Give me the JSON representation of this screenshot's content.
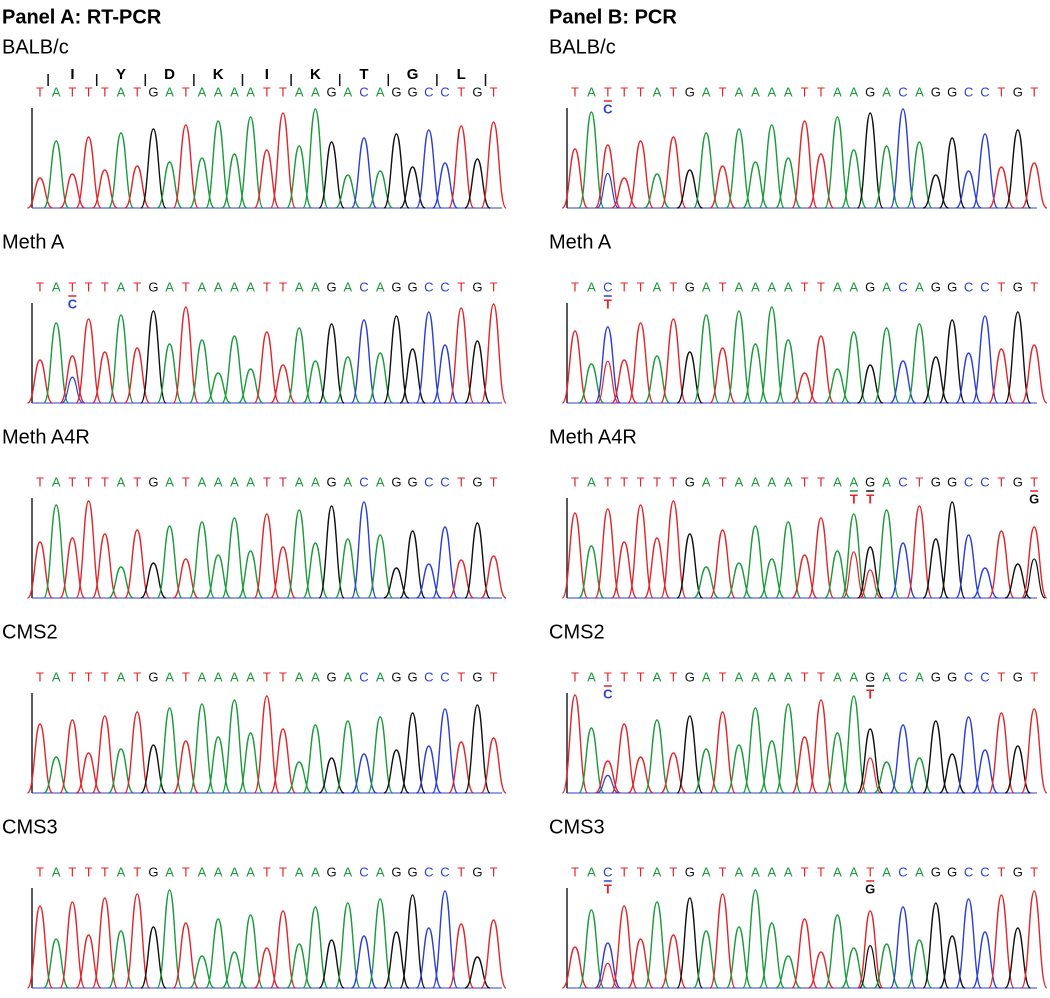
{
  "panels": [
    {
      "title": "Panel A: RT-PCR",
      "traces": [
        {
          "label": "BALB/c",
          "amino_acids": [
            null,
            null,
            "I",
            null,
            null,
            "Y",
            null,
            null,
            "D",
            null,
            null,
            "K",
            null,
            null,
            "I",
            null,
            null,
            "K",
            null,
            null,
            "T",
            null,
            null,
            "G",
            null,
            null,
            "L",
            null,
            null
          ],
          "sequence": [
            "T",
            "A",
            "T",
            "T",
            "T",
            "A",
            "T",
            "G",
            "A",
            "T",
            "A",
            "A",
            "A",
            "A",
            "T",
            "T",
            "A",
            "A",
            "G",
            "A",
            "C",
            "A",
            "G",
            "G",
            "C",
            "C",
            "T",
            "G",
            "T"
          ]
        },
        {
          "label": "Meth A",
          "sequence": [
            "T",
            "A",
            "T",
            "T",
            "T",
            "A",
            "T",
            "G",
            "A",
            "T",
            "A",
            "A",
            "A",
            "A",
            "T",
            "T",
            "A",
            "A",
            "G",
            "A",
            "C",
            "A",
            "G",
            "G",
            "C",
            "C",
            "T",
            "G",
            "T"
          ],
          "lower": [
            null,
            null,
            "C",
            null,
            null,
            null,
            null,
            null,
            null,
            null,
            null,
            null,
            null,
            null,
            null,
            null,
            null,
            null,
            null,
            null,
            null,
            null,
            null,
            null,
            null,
            null,
            null,
            null,
            null
          ]
        },
        {
          "label": "Meth A4R",
          "sequence": [
            "T",
            "A",
            "T",
            "T",
            "T",
            "A",
            "T",
            "G",
            "A",
            "T",
            "A",
            "A",
            "A",
            "A",
            "T",
            "T",
            "A",
            "A",
            "G",
            "A",
            "C",
            "A",
            "G",
            "G",
            "C",
            "C",
            "T",
            "G",
            "T"
          ]
        },
        {
          "label": "CMS2",
          "sequence": [
            "T",
            "A",
            "T",
            "T",
            "T",
            "A",
            "T",
            "G",
            "A",
            "T",
            "A",
            "A",
            "A",
            "A",
            "T",
            "T",
            "A",
            "A",
            "G",
            "A",
            "C",
            "A",
            "G",
            "G",
            "C",
            "C",
            "T",
            "G",
            "T"
          ]
        },
        {
          "label": "CMS3",
          "sequence": [
            "T",
            "A",
            "T",
            "T",
            "T",
            "A",
            "T",
            "G",
            "A",
            "T",
            "A",
            "A",
            "A",
            "A",
            "T",
            "T",
            "A",
            "A",
            "G",
            "A",
            "C",
            "A",
            "G",
            "G",
            "C",
            "C",
            "T",
            "G",
            "T"
          ]
        }
      ]
    },
    {
      "title": "Panel B: PCR",
      "traces": [
        {
          "label": "BALB/c",
          "sequence": [
            "T",
            "A",
            "T",
            "T",
            "T",
            "A",
            "T",
            "G",
            "A",
            "T",
            "A",
            "A",
            "A",
            "A",
            "T",
            "T",
            "A",
            "A",
            "G",
            "A",
            "C",
            "A",
            "G",
            "G",
            "C",
            "C",
            "T",
            "G",
            "T"
          ],
          "lower": [
            null,
            null,
            "C",
            null,
            null,
            null,
            null,
            null,
            null,
            null,
            null,
            null,
            null,
            null,
            null,
            null,
            null,
            null,
            null,
            null,
            null,
            null,
            null,
            null,
            null,
            null,
            null,
            null,
            null
          ]
        },
        {
          "label": "Meth A",
          "sequence": [
            "T",
            "A",
            "C",
            "T",
            "T",
            "A",
            "T",
            "G",
            "A",
            "T",
            "A",
            "A",
            "A",
            "A",
            "T",
            "T",
            "A",
            "A",
            "G",
            "A",
            "C",
            "A",
            "G",
            "G",
            "C",
            "C",
            "T",
            "G",
            "T"
          ],
          "lower": [
            null,
            null,
            "T",
            null,
            null,
            null,
            null,
            null,
            null,
            null,
            null,
            null,
            null,
            null,
            null,
            null,
            null,
            null,
            null,
            null,
            null,
            null,
            null,
            null,
            null,
            null,
            null,
            null,
            null
          ]
        },
        {
          "label": "Meth A4R",
          "sequence": [
            "T",
            "A",
            "T",
            "T",
            "T",
            "T",
            "T",
            "G",
            "A",
            "T",
            "A",
            "A",
            "A",
            "A",
            "T",
            "T",
            "A",
            "A",
            "G",
            "A",
            "C",
            "T",
            "G",
            "G",
            "C",
            "C",
            "T",
            "G",
            "T"
          ],
          "lower": [
            null,
            null,
            null,
            null,
            null,
            null,
            null,
            null,
            null,
            null,
            null,
            null,
            null,
            null,
            null,
            null,
            null,
            "T",
            "T",
            null,
            null,
            null,
            null,
            null,
            null,
            null,
            null,
            null,
            "G"
          ]
        },
        {
          "label": "CMS2",
          "sequence": [
            "T",
            "A",
            "T",
            "T",
            "T",
            "A",
            "T",
            "G",
            "A",
            "T",
            "A",
            "A",
            "A",
            "A",
            "T",
            "T",
            "A",
            "A",
            "G",
            "A",
            "C",
            "A",
            "G",
            "G",
            "C",
            "C",
            "T",
            "G",
            "T"
          ],
          "lower": [
            null,
            null,
            "C",
            null,
            null,
            null,
            null,
            null,
            null,
            null,
            null,
            null,
            null,
            null,
            null,
            null,
            null,
            null,
            "T",
            null,
            null,
            null,
            null,
            null,
            null,
            null,
            null,
            null,
            null
          ]
        },
        {
          "label": "CMS3",
          "sequence": [
            "T",
            "A",
            "C",
            "T",
            "T",
            "A",
            "T",
            "G",
            "A",
            "T",
            "A",
            "A",
            "A",
            "A",
            "T",
            "T",
            "A",
            "A",
            "T",
            "A",
            "C",
            "A",
            "G",
            "G",
            "C",
            "C",
            "T",
            "G",
            "T"
          ],
          "lower": [
            null,
            null,
            "T",
            null,
            null,
            null,
            null,
            null,
            null,
            null,
            null,
            null,
            null,
            null,
            null,
            null,
            null,
            null,
            "G",
            null,
            null,
            null,
            null,
            null,
            null,
            null,
            null,
            null,
            null
          ]
        }
      ]
    }
  ]
}
